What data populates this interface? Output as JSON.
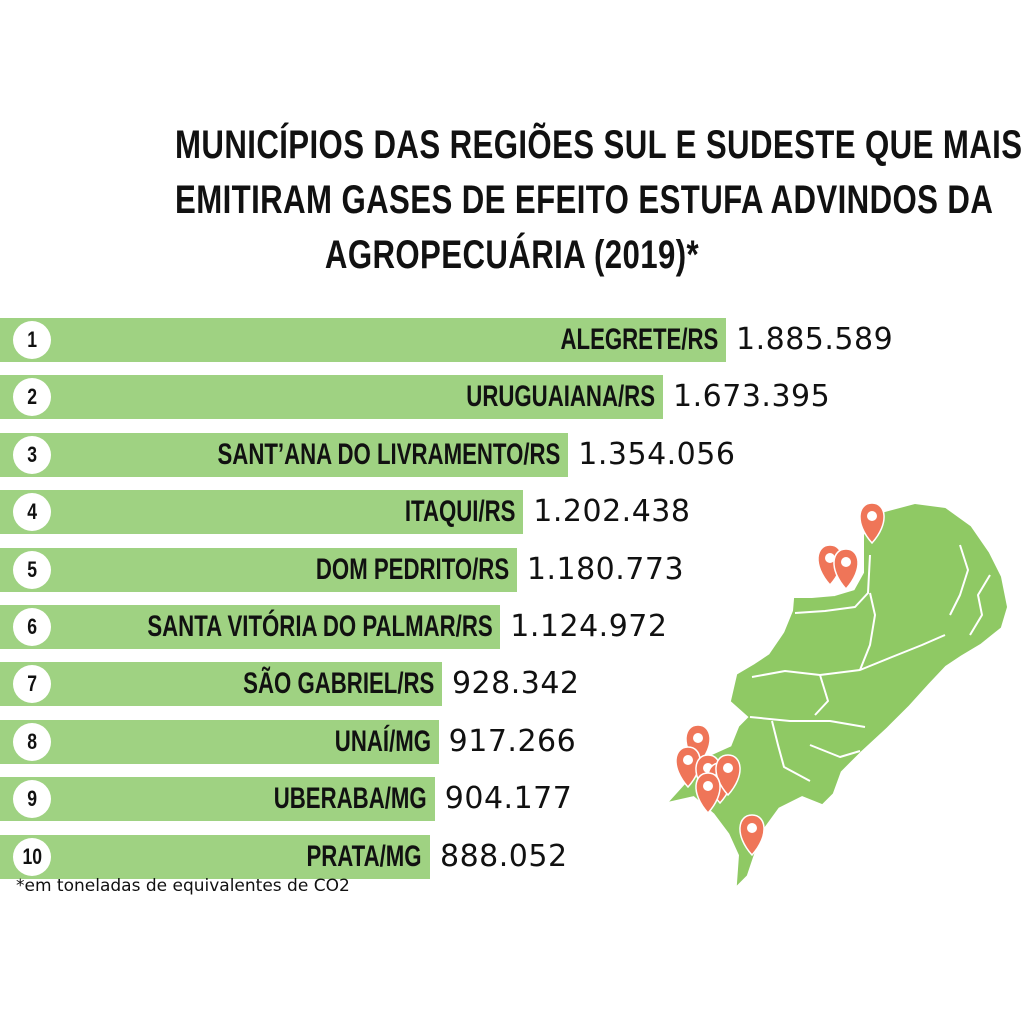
{
  "title_lines": [
    "MUNICÍPIOS DAS REGIÕES SUL E SUDESTE QUE MAIS",
    "EMITIRAM GASES DE EFEITO ESTUFA ADVINDOS DA",
    "AGROPECUÁRIA (2019)*"
  ],
  "footnote": "*em toneladas de equivalentes de CO2",
  "chart_data": {
    "type": "bar",
    "orientation": "horizontal",
    "title": "MUNICÍPIOS DAS REGIÕES SUL E SUDESTE QUE MAIS EMITIRAM GASES DE EFEITO ESTUFA ADVINDOS DA AGROPECUÁRIA (2019)*",
    "ranks": [
      "1",
      "2",
      "3",
      "4",
      "5",
      "6",
      "7",
      "8",
      "9",
      "10"
    ],
    "categories": [
      "ALEGRETE/RS",
      "URUGUAIANA/RS",
      "SANT’ANA DO LIVRAMENTO/RS",
      "ITAQUI/RS",
      "DOM PEDRITO/RS",
      "SANTA VITÓRIA DO PALMAR/RS",
      "SÃO GABRIEL/RS",
      "UNAÍ/MG",
      "UBERABA/MG",
      "PRATA/MG"
    ],
    "values": [
      1885589,
      1673395,
      1354056,
      1202438,
      1180773,
      1124972,
      928342,
      917266,
      904177,
      888052
    ],
    "value_labels": [
      "1.885.589",
      "1.673.395",
      "1.354.056",
      "1.202.438",
      "1.180.773",
      "1.124.972",
      "928.342",
      "917.266",
      "904.177",
      "888.052"
    ],
    "bar_color": "#9fd282",
    "unit": "*em toneladas de equivalentes de CO2"
  },
  "map": {
    "region_color": "#8fc964",
    "border_color": "#ffffff",
    "pin_color": "#ef7558"
  }
}
